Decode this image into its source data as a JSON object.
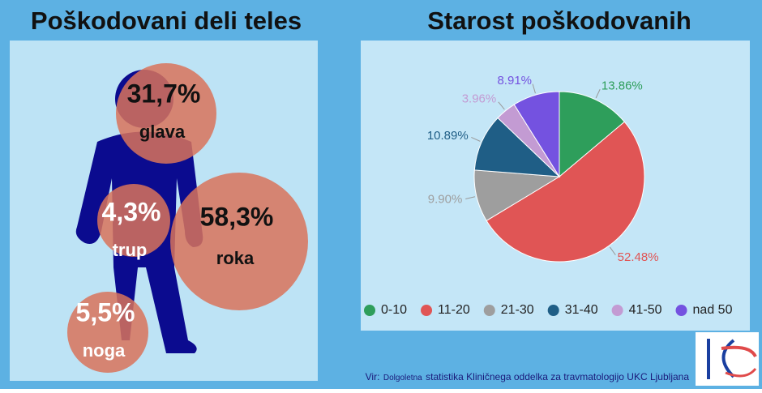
{
  "body_panel": {
    "title": "Poškodovani deli teles",
    "parts": [
      {
        "label": "glava",
        "value": "31,7%"
      },
      {
        "label": "trup",
        "value": "4,3%"
      },
      {
        "label": "roka",
        "value": "58,3%"
      },
      {
        "label": "noga",
        "value": "5,5%"
      }
    ]
  },
  "chart_data": {
    "type": "pie",
    "title": "Starost poškodovanih",
    "categories": [
      "0-10",
      "11-20",
      "21-30",
      "31-40",
      "41-50",
      "nad 50"
    ],
    "values": [
      13.86,
      52.48,
      9.9,
      10.89,
      3.96,
      8.91
    ],
    "value_labels": [
      "13.86%",
      "52.48%",
      "9.90%",
      "10.89%",
      "3.96%",
      "8.91%"
    ],
    "colors": [
      "#2e9e5b",
      "#e05555",
      "#9e9e9e",
      "#1f5e86",
      "#c39bd3",
      "#7452e0"
    ],
    "legend": "bottom"
  },
  "source": {
    "prefix": "Vir:",
    "small": "Dolgoletna",
    "rest": "statistika Kliničnega oddelka za travmatologijo  UKC Ljubljana"
  }
}
